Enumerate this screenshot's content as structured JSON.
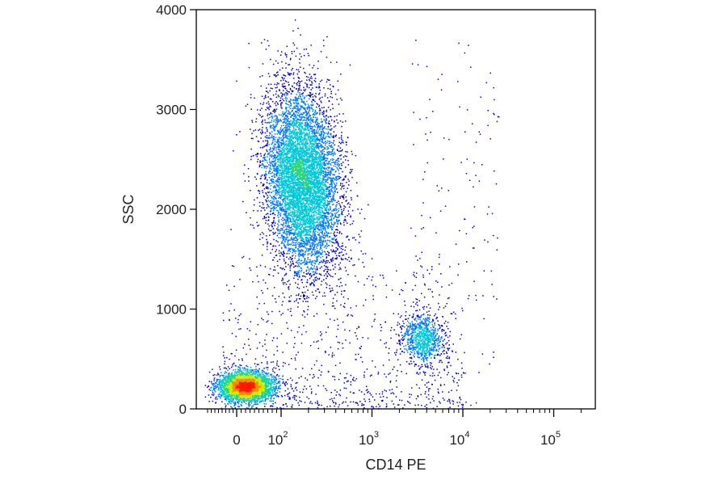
{
  "chart_data": {
    "type": "scatter",
    "style": "density-colored flow cytometry dot plot",
    "xlabel": "CD14 PE",
    "ylabel": "SSC",
    "x_scale": "biexponential",
    "xlim": [
      -80,
      300000
    ],
    "ylim": [
      0,
      4000
    ],
    "x_tick_labels": [
      {
        "value": 0,
        "base": "0",
        "exp": ""
      },
      {
        "value": 100,
        "base": "10",
        "exp": "2"
      },
      {
        "value": 1000,
        "base": "10",
        "exp": "3"
      },
      {
        "value": 10000,
        "base": "10",
        "exp": "4"
      },
      {
        "value": 100000,
        "base": "10",
        "exp": "5"
      }
    ],
    "y_ticks": [
      0,
      1000,
      2000,
      3000,
      4000
    ],
    "y_tick_labels": [
      "0",
      "1000",
      "2000",
      "3000",
      "4000"
    ],
    "grid": false,
    "density_colors": [
      "#0000cc",
      "#0077ff",
      "#00c8d8",
      "#2ed47a",
      "#c8f000",
      "#ff8a00",
      "#ff1a00"
    ],
    "populations": [
      {
        "x_center": 20,
        "y_center": 230,
        "events": 3500,
        "peak_density": "high"
      },
      {
        "x_center": 170,
        "y_center": 2300,
        "events": 7500,
        "peak_density": "medium"
      },
      {
        "x_center": 3500,
        "y_center": 720,
        "events": 900,
        "peak_density": "medium-low"
      }
    ]
  }
}
